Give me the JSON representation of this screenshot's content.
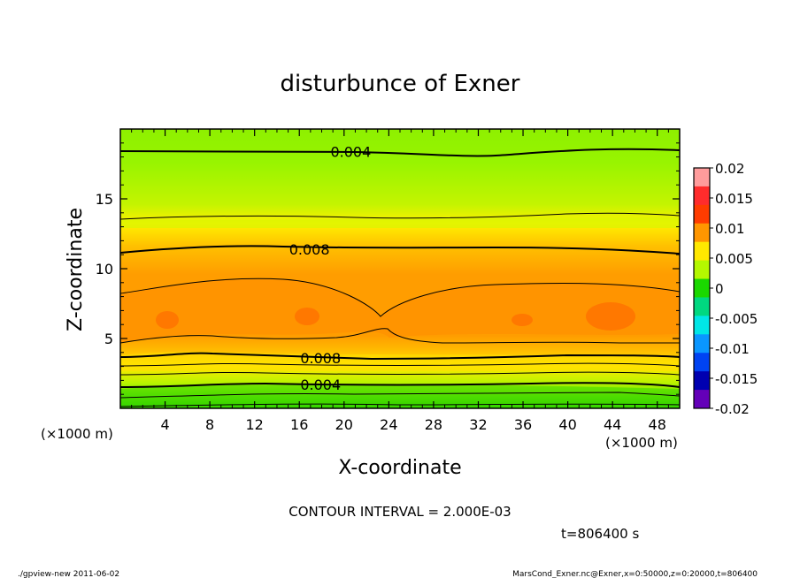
{
  "chart_data": {
    "type": "heatmap",
    "title": "disturbunce of Exner",
    "xlabel": "X-coordinate",
    "ylabel": "Z-coordinate",
    "x_unit_left": "(×1000 m)",
    "x_unit_right": "(×1000 m)",
    "xlim": [
      0,
      50
    ],
    "ylim": [
      0,
      20
    ],
    "x_ticks": [
      4,
      8,
      12,
      16,
      20,
      24,
      28,
      32,
      36,
      40,
      44,
      48
    ],
    "y_ticks": [
      5,
      10,
      15
    ],
    "colorbar": {
      "ticks": [
        "0.02",
        "0.015",
        "0.01",
        "0.005",
        "0",
        "-0.005",
        "-0.01",
        "-0.015",
        "-0.02"
      ],
      "range": [
        -0.02,
        0.02
      ],
      "colors": [
        "#ff9c9c",
        "#ff2c2c",
        "#ff3c00",
        "#ff9600",
        "#ffe800",
        "#b4f800",
        "#1ad800",
        "#00d880",
        "#00e6e6",
        "#0a96ff",
        "#0043f2",
        "#0000b0",
        "#6400b8"
      ]
    },
    "contour_labels": [
      {
        "text": "0.004",
        "x": 20.6,
        "z": 18.4
      },
      {
        "text": "0.008",
        "x": 16.9,
        "z": 11.4
      },
      {
        "text": "0.008",
        "x": 17.9,
        "z": 3.6
      },
      {
        "text": "0.004",
        "x": 17.9,
        "z": 1.7
      }
    ],
    "contour_interval_text": "CONTOUR INTERVAL = 2.000E-03",
    "time_text": "t=806400 s",
    "footer_left": "./gpview-new   2011-06-02",
    "footer_right": "MarsCond_Exner.nc@Exner,x=0:50000,z=0:20000,t=806400"
  }
}
